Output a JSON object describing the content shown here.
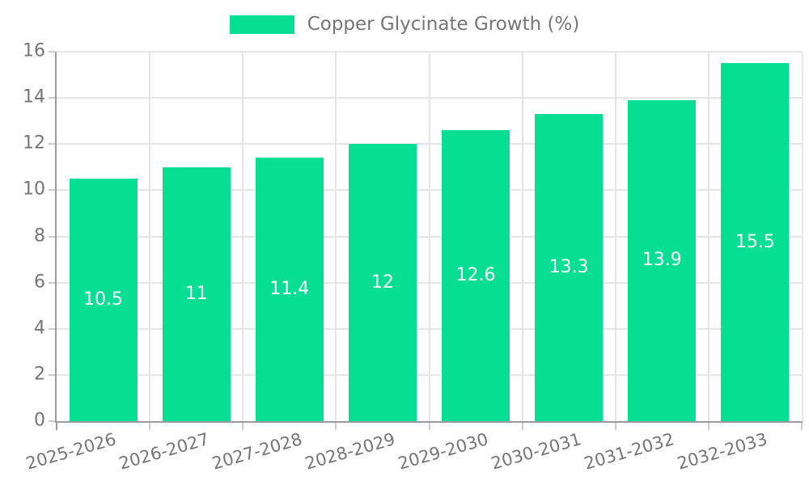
{
  "chart_data": {
    "type": "bar",
    "title": "Copper Glycinate Growth (%)",
    "categories": [
      "2025-2026",
      "2026-2027",
      "2027-2028",
      "2028-2029",
      "2029-2030",
      "2030-2031",
      "2031-2032",
      "2032-2033"
    ],
    "values": [
      10.5,
      11,
      11.4,
      12,
      12.6,
      13.3,
      13.9,
      15.5
    ],
    "value_labels": [
      "10.5",
      "11",
      "11.4",
      "12",
      "12.6",
      "13.3",
      "13.9",
      "15.5"
    ],
    "ylim": [
      0,
      16
    ],
    "y_ticks": [
      0,
      2,
      4,
      6,
      8,
      10,
      12,
      14,
      16
    ],
    "xlabel": "",
    "ylabel": "",
    "grid": true,
    "legend_position": "top-center",
    "colors": {
      "bar": "#05DE93",
      "bar_label": "#FFFFFF",
      "axis_text": "#757575",
      "axis_line": "#9B9B9B",
      "gridline": "#E5E5E5",
      "tick": "#CCCCCC",
      "background": "#FFFFFF"
    }
  }
}
